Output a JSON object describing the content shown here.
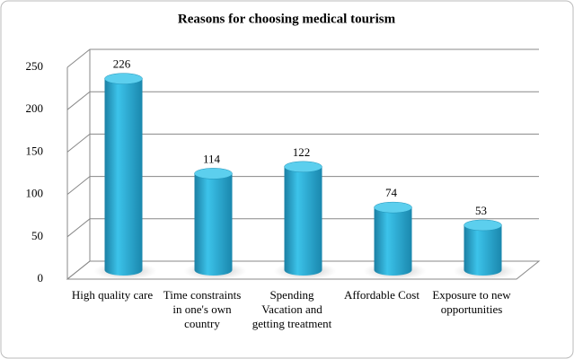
{
  "chart_data": {
    "type": "bar",
    "title": "Reasons for choosing medical tourism",
    "categories": [
      "High quality care",
      "Time constraints in one's own country",
      "Spending Vacation and getting treatment",
      "Affordable Cost",
      "Exposure to new opportunities"
    ],
    "values": [
      226,
      114,
      122,
      74,
      53
    ],
    "color": "#2aa9d2",
    "ylim": [
      0,
      250
    ],
    "yticks": [
      0,
      50,
      100,
      150,
      200,
      250
    ],
    "grid": true
  }
}
